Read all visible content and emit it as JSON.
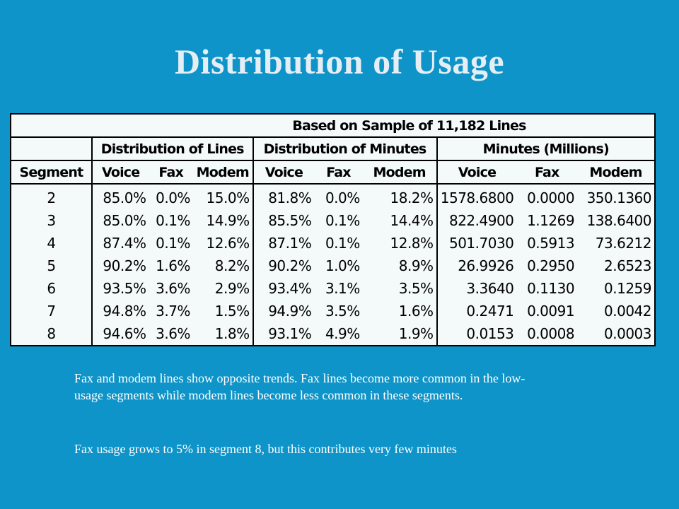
{
  "title": "Distribution of Usage",
  "table": {
    "caption": "Based on Sample of 11,182 Lines",
    "groups": [
      "Distribution of Lines",
      "Distribution of Minutes",
      "Minutes (Millions)"
    ],
    "columns": [
      "Segment",
      "Voice",
      "Fax",
      "Modem",
      "Voice",
      "Fax",
      "Modem",
      "Voice",
      "Fax",
      "Modem"
    ],
    "rows": [
      [
        "2",
        "85.0%",
        "0.0%",
        "15.0%",
        "81.8%",
        "0.0%",
        "18.2%",
        "1578.6800",
        "0.0000",
        "350.1360"
      ],
      [
        "3",
        "85.0%",
        "0.1%",
        "14.9%",
        "85.5%",
        "0.1%",
        "14.4%",
        "822.4900",
        "1.1269",
        "138.6400"
      ],
      [
        "4",
        "87.4%",
        "0.1%",
        "12.6%",
        "87.1%",
        "0.1%",
        "12.8%",
        "501.7030",
        "0.5913",
        "73.6212"
      ],
      [
        "5",
        "90.2%",
        "1.6%",
        "8.2%",
        "90.2%",
        "1.0%",
        "8.9%",
        "26.9926",
        "0.2950",
        "2.6523"
      ],
      [
        "6",
        "93.5%",
        "3.6%",
        "2.9%",
        "93.4%",
        "3.1%",
        "3.5%",
        "3.3640",
        "0.1130",
        "0.1259"
      ],
      [
        "7",
        "94.8%",
        "3.7%",
        "1.5%",
        "94.9%",
        "3.5%",
        "1.6%",
        "0.2471",
        "0.0091",
        "0.0042"
      ],
      [
        "8",
        "94.6%",
        "3.6%",
        "1.8%",
        "93.1%",
        "4.9%",
        "1.9%",
        "0.0153",
        "0.0008",
        "0.0003"
      ]
    ]
  },
  "notes": [
    "Fax and modem lines show opposite trends. Fax lines become more common in the low-usage segments while modem lines become less common in these segments.",
    "Fax usage grows to 5% in segment 8, but this contributes very few minutes"
  ],
  "colors": {
    "background": "#0e94c8",
    "title": "#e6eef5",
    "table_bg": "#f4f9f9"
  }
}
